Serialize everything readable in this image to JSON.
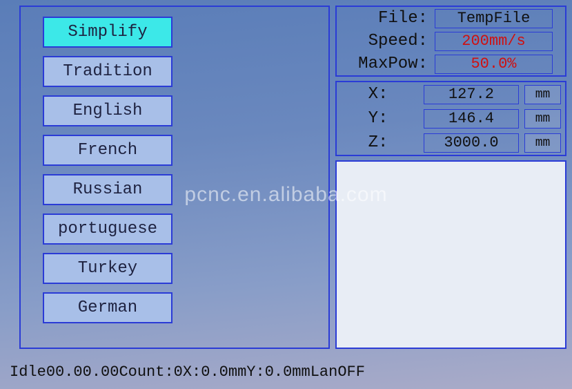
{
  "colors": {
    "screen_gradient_top": "#5a7db8",
    "screen_gradient_bottom": "#aaabc8",
    "border": "#2a3bd6",
    "selected_bg": "#3ce8e8",
    "item_bg": "#a8bfe8",
    "preview_bg": "#e8edf5",
    "text_dark": "#101010",
    "text_red": "#d01010"
  },
  "languages": {
    "items": [
      {
        "label": "Simplify",
        "selected": true
      },
      {
        "label": "Tradition",
        "selected": false
      },
      {
        "label": "English",
        "selected": false
      },
      {
        "label": "French",
        "selected": false
      },
      {
        "label": "Russian",
        "selected": false
      },
      {
        "label": "portuguese",
        "selected": false
      },
      {
        "label": "Turkey",
        "selected": false
      },
      {
        "label": "German",
        "selected": false
      }
    ]
  },
  "fileinfo": {
    "file_label": "File:",
    "file_value": "TempFile",
    "speed_label": "Speed:",
    "speed_value": "200mm/s",
    "maxpow_label": "MaxPow:",
    "maxpow_value": "50.0%"
  },
  "coords": {
    "x_label": "X:",
    "x_value": "127.2",
    "x_unit": "mm",
    "y_label": "Y:",
    "y_value": "146.4",
    "y_unit": "mm",
    "z_label": "Z:",
    "z_value": "3000.0",
    "z_unit": "mm"
  },
  "status": {
    "state": "Idle",
    "time": "00.00.00",
    "count_label": "Count:",
    "count_value": "0",
    "x_label": "X:",
    "x_value": "0.0mm",
    "y_label": "Y:",
    "y_value": "0.0mm",
    "lan_label": "Lan",
    "lan_value": "OFF"
  },
  "watermark": "pcnc.en.alibaba.com"
}
